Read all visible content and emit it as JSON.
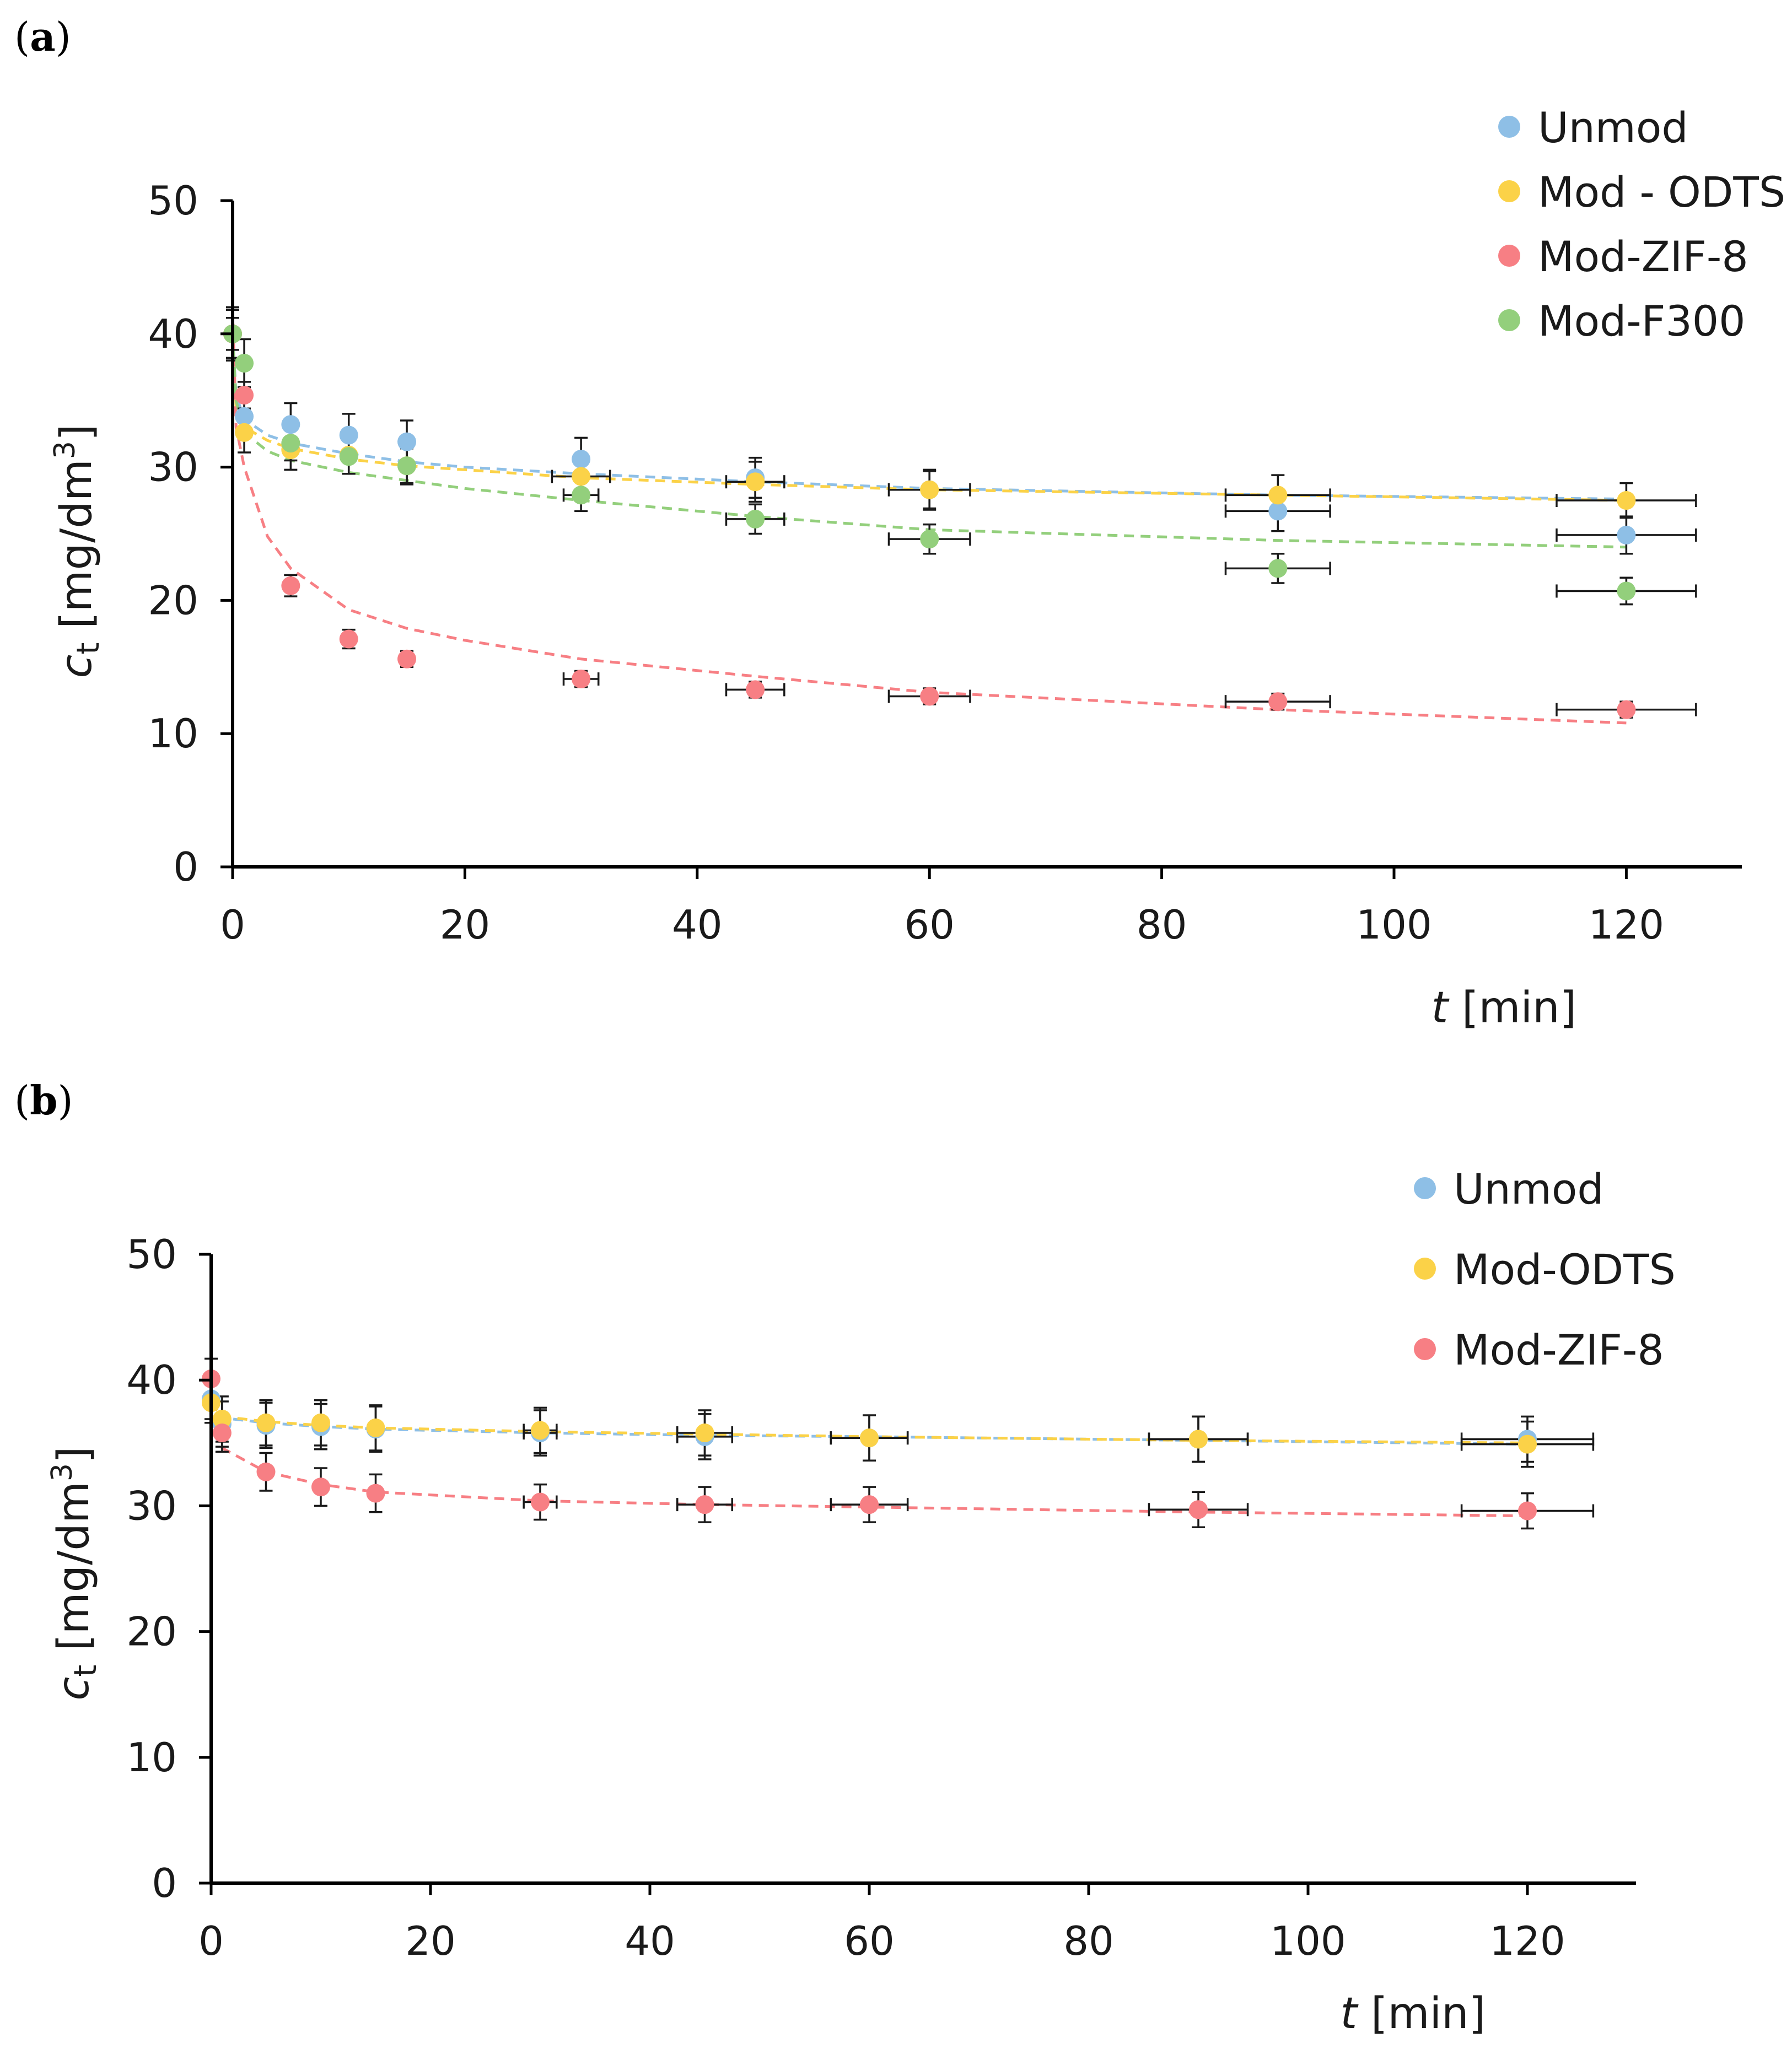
{
  "chart_data": [
    {
      "panel": "(a)",
      "panel_letter": "a",
      "type": "scatter",
      "xlabel": "t [min]",
      "xlabel_var": "t",
      "xlabel_unit": "[min]",
      "ylabel": "c_t [mg/dm3]",
      "ylabel_var": "c",
      "ylabel_sub": "t",
      "ylabel_unit_pre": "[mg/dm",
      "ylabel_unit_sup": "3",
      "ylabel_unit_post": "]",
      "xlim": [
        0,
        130
      ],
      "ylim": [
        0,
        50
      ],
      "xticks": [
        0,
        20,
        40,
        60,
        80,
        100,
        120
      ],
      "yticks": [
        0,
        10,
        20,
        30,
        40,
        50
      ],
      "legend_position": "top-right",
      "x": [
        0,
        1,
        5,
        10,
        15,
        30,
        45,
        60,
        90,
        120
      ],
      "series": [
        {
          "name": "Unmod",
          "color": "#8ebfe6",
          "values": [
            40,
            33.8,
            33.2,
            32.4,
            31.9,
            30.6,
            29.2,
            28.3,
            26.7,
            24.9
          ],
          "yerr": [
            2,
            1.6,
            1.6,
            1.6,
            1.6,
            1.6,
            1.5,
            1.5,
            1.5,
            1.4
          ],
          "xerr": [
            0,
            0,
            0,
            0,
            0,
            0,
            0,
            0,
            4.5,
            6
          ],
          "fit": [
            [
              0,
              40
            ],
            [
              0.3,
              35.4
            ],
            [
              1,
              33.6
            ],
            [
              3,
              32.4
            ],
            [
              5,
              31.8
            ],
            [
              10,
              31
            ],
            [
              15,
              30.4
            ],
            [
              20,
              30
            ],
            [
              30,
              29.5
            ],
            [
              45,
              28.9
            ],
            [
              60,
              28.4
            ],
            [
              90,
              27.9
            ],
            [
              120,
              27.6
            ]
          ]
        },
        {
          "name": "Mod - ODTS",
          "color": "#fbd248",
          "values": [
            40,
            32.6,
            31.3,
            30.9,
            30.1,
            29.3,
            28.9,
            28.3,
            27.9,
            27.5
          ],
          "yerr": [
            1.8,
            1.5,
            1.5,
            1.4,
            1.4,
            1.4,
            1.5,
            1.4,
            1.5,
            1.3
          ],
          "xerr": [
            0,
            0,
            0,
            0,
            0,
            2.5,
            2.5,
            3.5,
            4.5,
            6
          ],
          "fit": [
            [
              0,
              40
            ],
            [
              0.3,
              34.5
            ],
            [
              1,
              33
            ],
            [
              3,
              32
            ],
            [
              5,
              31.4
            ],
            [
              10,
              30.6
            ],
            [
              15,
              30.1
            ],
            [
              20,
              29.8
            ],
            [
              30,
              29.2
            ],
            [
              45,
              28.7
            ],
            [
              60,
              28.3
            ],
            [
              90,
              27.9
            ],
            [
              120,
              27.5
            ]
          ]
        },
        {
          "name": "Mod-ZIF-8",
          "color": "#f77f84",
          "values": [
            40,
            35.4,
            21.1,
            17.1,
            15.6,
            14.1,
            13.3,
            12.8,
            12.4,
            11.8
          ],
          "yerr": [
            1.2,
            1,
            0.8,
            0.7,
            0.6,
            0.6,
            0.6,
            0.6,
            0.6,
            0.6
          ],
          "xerr": [
            0,
            0,
            0,
            0,
            0,
            1.5,
            2.5,
            3.5,
            4.5,
            6
          ],
          "fit": [
            [
              0,
              42
            ],
            [
              0.3,
              33
            ],
            [
              1,
              30
            ],
            [
              3,
              24.8
            ],
            [
              5,
              22.4
            ],
            [
              10,
              19.3
            ],
            [
              15,
              17.9
            ],
            [
              20,
              17
            ],
            [
              30,
              15.6
            ],
            [
              45,
              14.3
            ],
            [
              60,
              13.1
            ],
            [
              90,
              11.8
            ],
            [
              120,
              10.8
            ]
          ]
        },
        {
          "name": "Mod-F300",
          "color": "#93cf7c",
          "values": [
            40,
            37.8,
            31.8,
            30.8,
            30.1,
            27.9,
            26.1,
            24.6,
            22.4,
            20.7
          ],
          "yerr": [
            2,
            1.8,
            1.3,
            1.3,
            1.3,
            1.2,
            1.1,
            1.1,
            1.1,
            1
          ],
          "xerr": [
            0,
            0,
            0,
            0,
            0,
            1.5,
            2.5,
            3.5,
            4.5,
            6
          ],
          "fit": [
            [
              0,
              40
            ],
            [
              0.3,
              35
            ],
            [
              1,
              32.6
            ],
            [
              3,
              31.2
            ],
            [
              5,
              30.5
            ],
            [
              10,
              29.6
            ],
            [
              15,
              29
            ],
            [
              20,
              28.4
            ],
            [
              30,
              27.5
            ],
            [
              45,
              26.3
            ],
            [
              60,
              25.3
            ],
            [
              90,
              24.5
            ],
            [
              120,
              24
            ]
          ]
        }
      ]
    },
    {
      "panel": "(b)",
      "panel_letter": "b",
      "type": "scatter",
      "xlabel": "t [min]",
      "xlabel_var": "t",
      "xlabel_unit": "[min]",
      "ylabel": "c_t [mg/dm3]",
      "ylabel_var": "c",
      "ylabel_sub": "t",
      "ylabel_unit_pre": "[mg/dm",
      "ylabel_unit_sup": "3",
      "ylabel_unit_post": "]",
      "xlim": [
        0,
        130
      ],
      "ylim": [
        0,
        50
      ],
      "xticks": [
        0,
        20,
        40,
        60,
        80,
        100,
        120
      ],
      "yticks": [
        0,
        10,
        20,
        30,
        40,
        50
      ],
      "legend_position": "top-right",
      "x": [
        0,
        1,
        5,
        10,
        15,
        30,
        45,
        60,
        90,
        120
      ],
      "series": [
        {
          "name": "Unmod",
          "color": "#8ebfe6",
          "values": [
            38.5,
            36.5,
            36.4,
            36.3,
            36.1,
            35.8,
            35.5,
            35.4,
            35.3,
            35.3
          ],
          "yerr": [
            1.6,
            1.8,
            1.8,
            1.8,
            1.8,
            1.8,
            1.8,
            1.8,
            1.8,
            1.8
          ],
          "xerr": [
            0,
            0,
            0,
            0,
            0,
            1.5,
            2.5,
            3.5,
            4.5,
            6
          ],
          "fit": [
            [
              0,
              38.5
            ],
            [
              1,
              37
            ],
            [
              5,
              36.6
            ],
            [
              10,
              36.3
            ],
            [
              15,
              36.1
            ],
            [
              30,
              35.8
            ],
            [
              45,
              35.6
            ],
            [
              60,
              35.5
            ],
            [
              90,
              35.2
            ],
            [
              120,
              34.9
            ]
          ]
        },
        {
          "name": "Mod-ODTS",
          "color": "#fbd248",
          "values": [
            38.2,
            36.9,
            36.6,
            36.6,
            36.2,
            36,
            35.8,
            35.4,
            35.3,
            34.9
          ],
          "yerr": [
            1.6,
            1.8,
            1.8,
            1.8,
            1.8,
            1.8,
            1.8,
            1.8,
            1.8,
            1.8
          ],
          "xerr": [
            0,
            0,
            0,
            0,
            0,
            1.5,
            2.5,
            3.5,
            4.5,
            6
          ],
          "fit": [
            [
              0,
              38.2
            ],
            [
              1,
              37.1
            ],
            [
              5,
              36.7
            ],
            [
              10,
              36.4
            ],
            [
              15,
              36.2
            ],
            [
              30,
              35.9
            ],
            [
              45,
              35.7
            ],
            [
              60,
              35.5
            ],
            [
              90,
              35.2
            ],
            [
              120,
              35
            ]
          ]
        },
        {
          "name": "Mod-ZIF-8",
          "color": "#f77f84",
          "values": [
            40.1,
            35.8,
            32.7,
            31.5,
            31,
            30.3,
            30.1,
            30.1,
            29.7,
            29.6
          ],
          "yerr": [
            1.6,
            1.5,
            1.5,
            1.5,
            1.5,
            1.4,
            1.4,
            1.4,
            1.4,
            1.4
          ],
          "xerr": [
            0,
            0,
            0,
            0,
            0,
            1.5,
            2.5,
            3.5,
            4.5,
            6
          ],
          "fit": [
            [
              0,
              38.5
            ],
            [
              1,
              34.6
            ],
            [
              5,
              32.7
            ],
            [
              10,
              31.7
            ],
            [
              15,
              31.1
            ],
            [
              30,
              30.4
            ],
            [
              45,
              30.1
            ],
            [
              60,
              29.9
            ],
            [
              90,
              29.5
            ],
            [
              120,
              29.2
            ]
          ]
        }
      ]
    }
  ]
}
